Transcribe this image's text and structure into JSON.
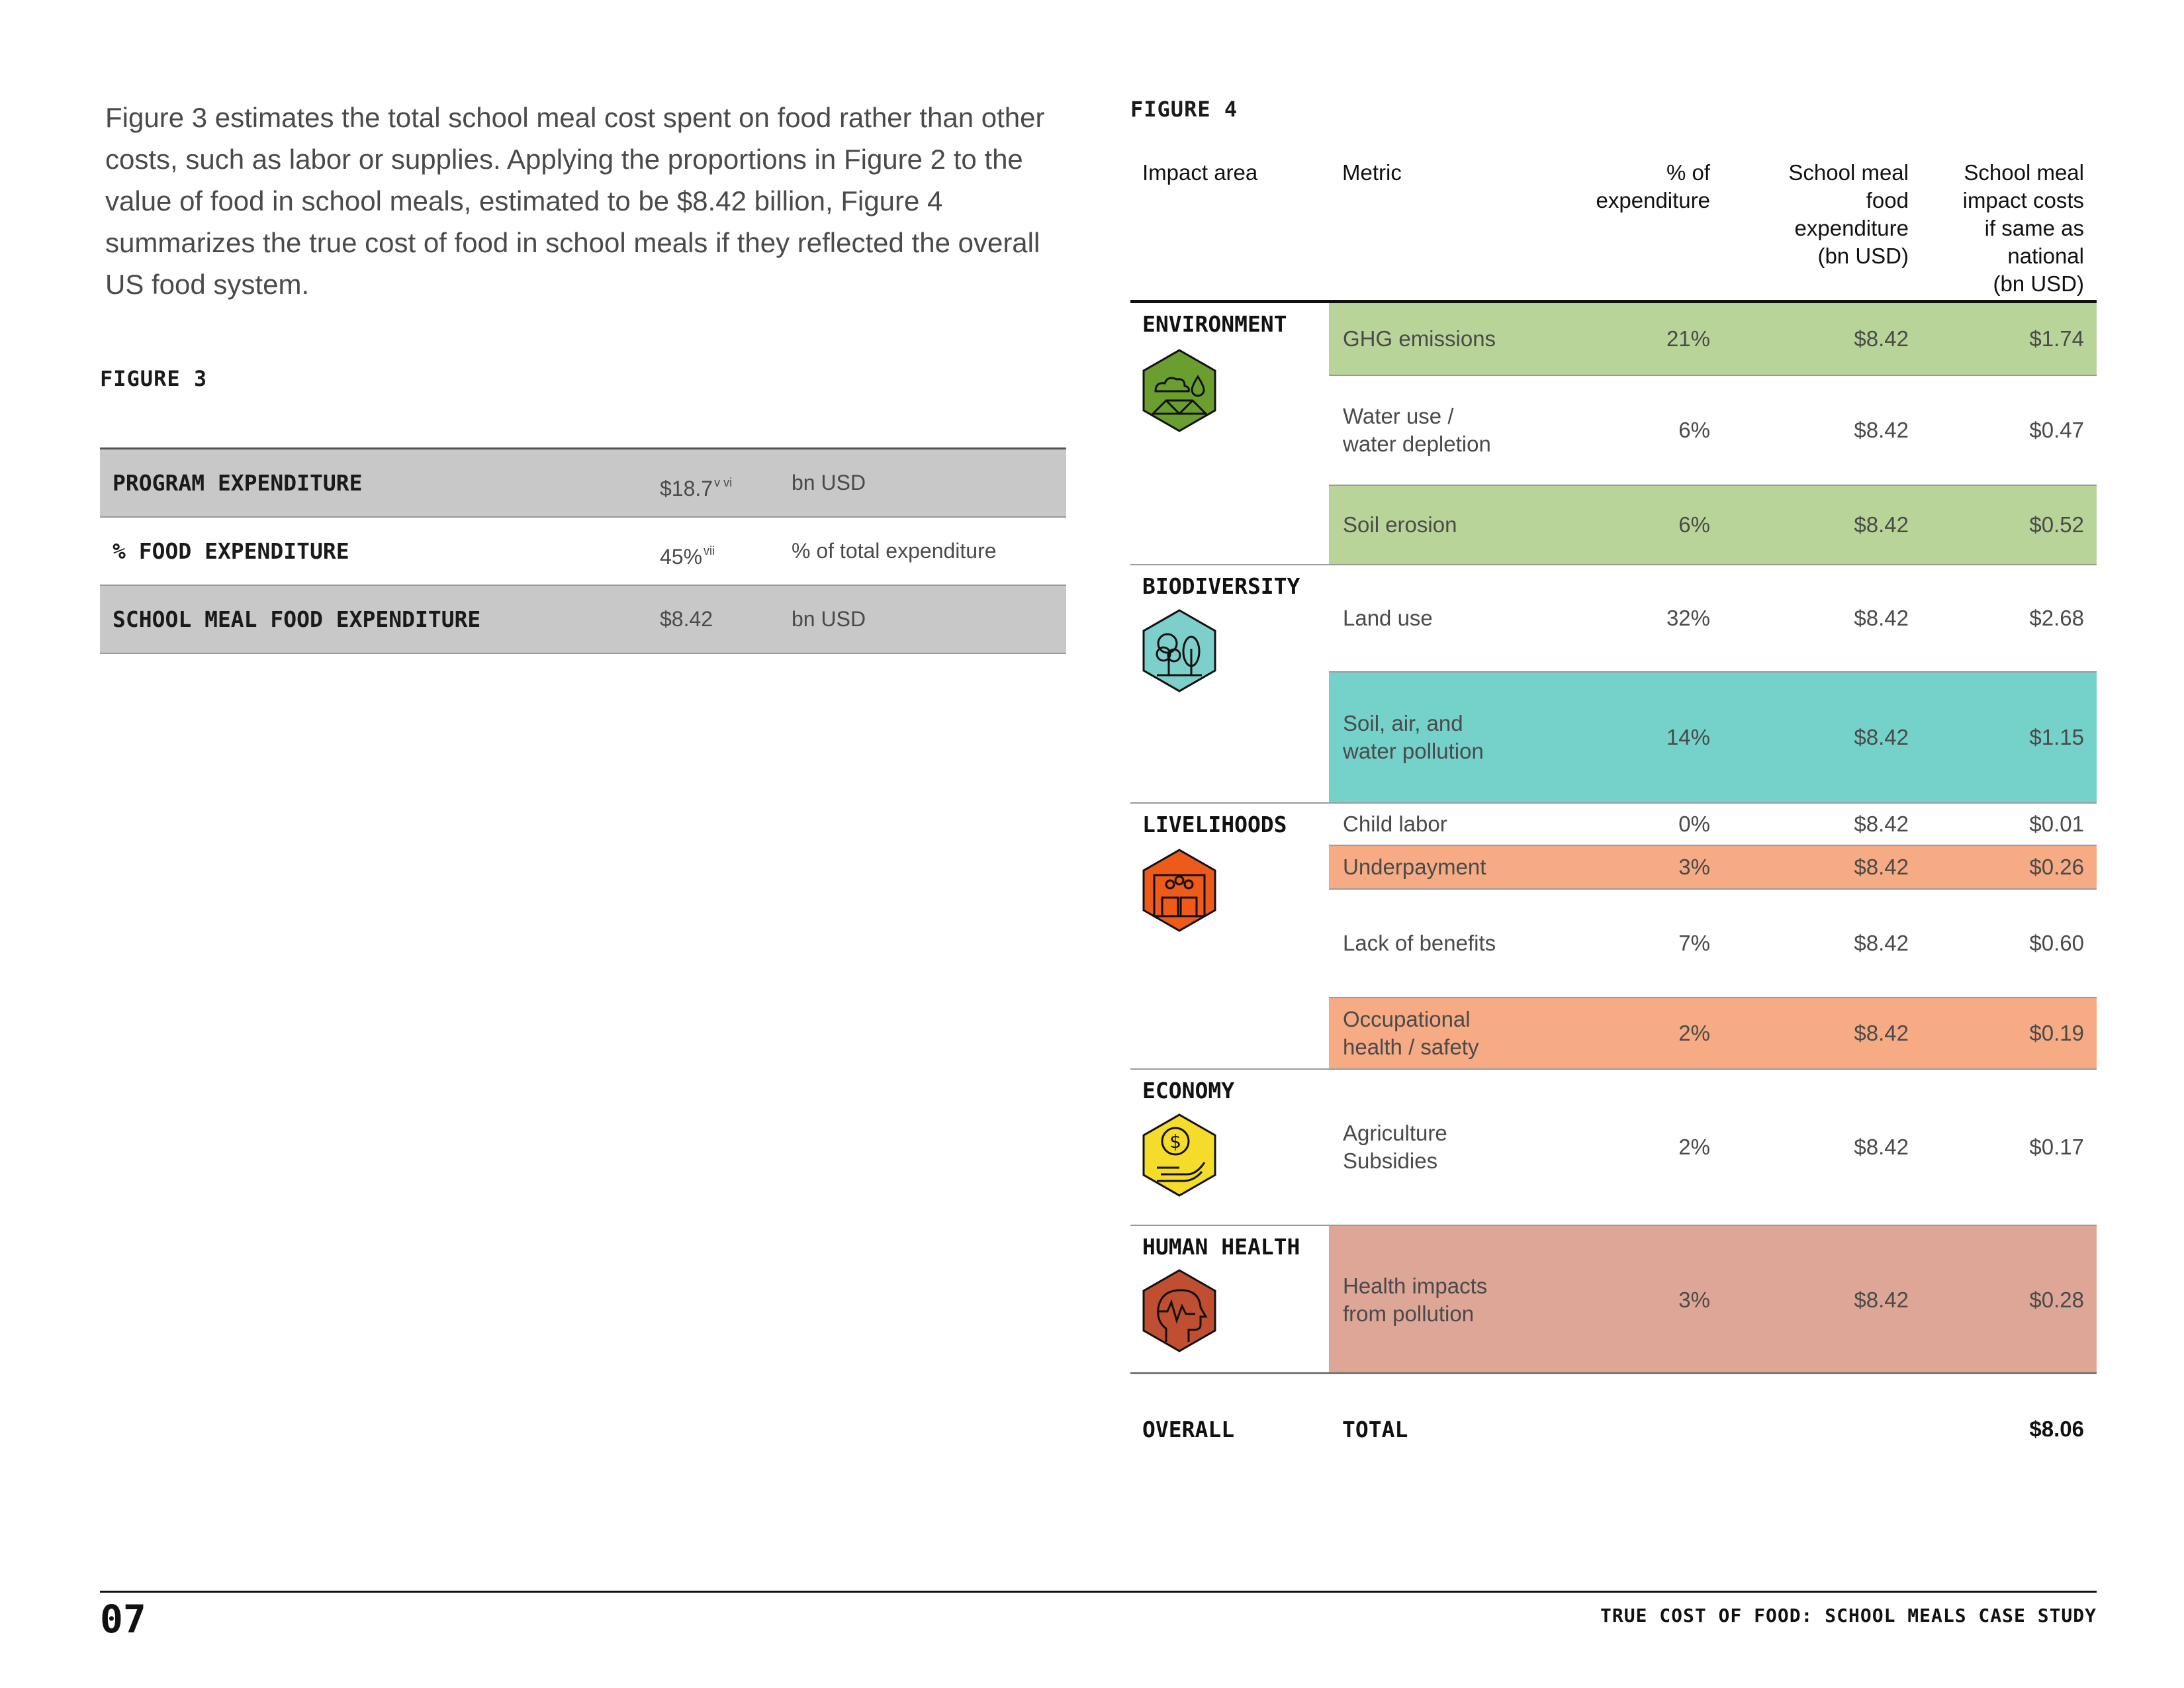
{
  "intro": "Figure 3 estimates the total school meal cost spent on food rather than other costs, such as labor or supplies. Applying the proportions in Figure 2 to the value of food in school meals, estimated to be $8.42 billion, Figure 4 summarizes the true cost of food in school meals if they reflected the overall US food system.",
  "figure3": {
    "label": "FIGURE 3",
    "rows": [
      {
        "label": "PROGRAM EXPENDITURE",
        "value": "$18.7",
        "footnote": "v vi",
        "unit": "bn USD"
      },
      {
        "label": "% FOOD EXPENDITURE",
        "value": "45%",
        "footnote": "vii",
        "unit": "% of total expenditure"
      },
      {
        "label": "SCHOOL MEAL FOOD EXPENDITURE",
        "value": "$8.42",
        "footnote": "",
        "unit": "bn USD"
      }
    ]
  },
  "figure4": {
    "label": "FIGURE 4",
    "headers": {
      "impact_area": "Impact area",
      "metric": "Metric",
      "pct": "% of\nexpenditure",
      "expenditure": "School meal\nfood\nexpenditure\n(bn USD)",
      "impact": "School meal\nimpact costs\nif same as\nnational\n(bn USD)"
    },
    "categories": [
      {
        "name": "ENVIRONMENT",
        "icon": "environment-icon",
        "color": "#6a9e2f"
      },
      {
        "name": "BIODIVERSITY",
        "icon": "biodiversity-icon",
        "color": "#7ccfcb"
      },
      {
        "name": "LIVELIHOODS",
        "icon": "livelihoods-icon",
        "color": "#ee5a1a"
      },
      {
        "name": "ECONOMY",
        "icon": "economy-icon",
        "color": "#f6dc2a"
      },
      {
        "name": "HUMAN HEALTH",
        "icon": "human-health-icon",
        "color": "#c04f31"
      }
    ],
    "rows": [
      {
        "metric": "GHG emissions",
        "pct": "21%",
        "expenditure": "$8.42",
        "impact": "$1.74",
        "highlight": "#b9d498"
      },
      {
        "metric": "Water use /\nwater depletion",
        "pct": "6%",
        "expenditure": "$8.42",
        "impact": "$0.47",
        "highlight": ""
      },
      {
        "metric": "Soil erosion",
        "pct": "6%",
        "expenditure": "$8.42",
        "impact": "$0.52",
        "highlight": "#b9d498"
      },
      {
        "metric": "Land use",
        "pct": "32%",
        "expenditure": "$8.42",
        "impact": "$2.68",
        "highlight": ""
      },
      {
        "metric": "Soil, air, and\nwater pollution",
        "pct": "14%",
        "expenditure": "$8.42",
        "impact": "$1.15",
        "highlight": "#74d2cb"
      },
      {
        "metric": "Child labor",
        "pct": "0%",
        "expenditure": "$8.42",
        "impact": "$0.01",
        "highlight": ""
      },
      {
        "metric": "Underpayment",
        "pct": "3%",
        "expenditure": "$8.42",
        "impact": "$0.26",
        "highlight": "#f6ab84"
      },
      {
        "metric": "Lack of benefits",
        "pct": "7%",
        "expenditure": "$8.42",
        "impact": "$0.60",
        "highlight": ""
      },
      {
        "metric": "Occupational\nhealth / safety",
        "pct": "2%",
        "expenditure": "$8.42",
        "impact": "$0.19",
        "highlight": "#f6ab84"
      },
      {
        "metric": "Agriculture\nSubsidies",
        "pct": "2%",
        "expenditure": "$8.42",
        "impact": "$0.17",
        "highlight": ""
      },
      {
        "metric": "Health impacts\nfrom pollution",
        "pct": "3%",
        "expenditure": "$8.42",
        "impact": "$0.28",
        "highlight": "#dea696"
      }
    ],
    "total": {
      "label": "OVERALL",
      "metric": "TOTAL",
      "impact": "$8.06"
    }
  },
  "footer": {
    "page_number": "07",
    "title": "TRUE COST OF FOOD: SCHOOL MEALS CASE STUDY"
  }
}
